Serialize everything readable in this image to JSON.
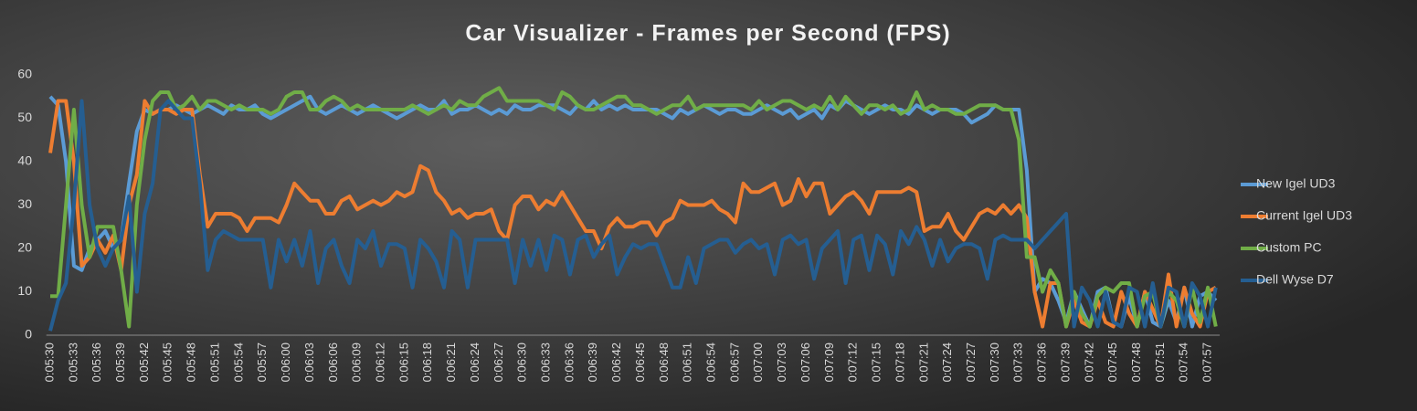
{
  "chart_data": {
    "type": "line",
    "title": "Car Visualizer - Frames per Second (FPS)",
    "categories": [
      "0:05:30",
      null,
      null,
      "0:05:33",
      null,
      null,
      "0:05:36",
      null,
      null,
      "0:05:39",
      null,
      null,
      "0:05:42",
      null,
      null,
      "0:05:45",
      null,
      null,
      "0:05:48",
      null,
      null,
      "0:05:51",
      null,
      null,
      "0:05:54",
      null,
      null,
      "0:05:57",
      null,
      null,
      "0:06:00",
      null,
      null,
      "0:06:03",
      null,
      null,
      "0:06:06",
      null,
      null,
      "0:06:09",
      null,
      null,
      "0:06:12",
      null,
      null,
      "0:06:15",
      null,
      null,
      "0:06:18",
      null,
      null,
      "0:06:21",
      null,
      null,
      "0:06:24",
      null,
      null,
      "0:06:27",
      null,
      null,
      "0:06:30",
      null,
      null,
      "0:06:33",
      null,
      null,
      "0:06:36",
      null,
      null,
      "0:06:39",
      null,
      null,
      "0:06:42",
      null,
      null,
      "0:06:45",
      null,
      null,
      "0:06:48",
      null,
      null,
      "0:06:51",
      null,
      null,
      "0:06:54",
      null,
      null,
      "0:06:57",
      null,
      null,
      "0:07:00",
      null,
      null,
      "0:07:03",
      null,
      null,
      "0:07:06",
      null,
      null,
      "0:07:09",
      null,
      null,
      "0:07:12",
      null,
      null,
      "0:07:15",
      null,
      null,
      "0:07:18",
      null,
      null,
      "0:07:21",
      null,
      null,
      "0:07:24",
      null,
      null,
      "0:07:27",
      null,
      null,
      "0:07:30",
      null,
      null,
      "0:07:33",
      null,
      null,
      "0:07:36",
      null,
      null,
      "0:07:39",
      null,
      null,
      "0:07:42",
      null,
      null,
      "0:07:45",
      null,
      null,
      "0:07:48",
      null,
      null,
      "0:07:51",
      null,
      null,
      "0:07:54",
      null,
      null,
      "0:07:57",
      null
    ],
    "series": [
      {
        "name": "New Igel UD3",
        "color": "#5b9bd5",
        "values": [
          55,
          53,
          40,
          16,
          15,
          20,
          22,
          24,
          20,
          22,
          35,
          47,
          52,
          51,
          52,
          52,
          53,
          52,
          51,
          52,
          53,
          52,
          51,
          53,
          52,
          52,
          53,
          51,
          50,
          51,
          52,
          53,
          54,
          55,
          52,
          51,
          52,
          53,
          52,
          51,
          52,
          53,
          52,
          51,
          50,
          51,
          52,
          53,
          52,
          52,
          54,
          51,
          52,
          52,
          53,
          52,
          51,
          52,
          51,
          53,
          52,
          52,
          53,
          53,
          53,
          52,
          51,
          53,
          52,
          54,
          52,
          53,
          52,
          53,
          52,
          52,
          52,
          52,
          51,
          50,
          52,
          51,
          52,
          53,
          52,
          51,
          52,
          52,
          51,
          51,
          52,
          53,
          52,
          51,
          52,
          50,
          51,
          52,
          50,
          53,
          52,
          54,
          53,
          52,
          51,
          52,
          53,
          52,
          52,
          51,
          53,
          52,
          51,
          52,
          52,
          52,
          51,
          49,
          50,
          51,
          53,
          52,
          52,
          52,
          38,
          10,
          13,
          12,
          8,
          3,
          10,
          6,
          2,
          10,
          11,
          3,
          2,
          9,
          2,
          10,
          3,
          2,
          8,
          3,
          11,
          2,
          9,
          10,
          8
        ]
      },
      {
        "name": "Current Igel UD3",
        "color": "#ed7d31",
        "values": [
          42,
          54,
          54,
          40,
          16,
          18,
          22,
          19,
          23,
          15,
          30,
          37,
          54,
          51,
          52,
          52,
          51,
          52,
          52,
          37,
          25,
          28,
          28,
          28,
          27,
          24,
          27,
          27,
          27,
          26,
          30,
          35,
          33,
          31,
          31,
          28,
          28,
          31,
          32,
          29,
          30,
          31,
          30,
          31,
          33,
          32,
          33,
          39,
          38,
          33,
          31,
          28,
          29,
          27,
          28,
          28,
          29,
          24,
          22,
          30,
          32,
          32,
          29,
          31,
          30,
          33,
          30,
          27,
          24,
          24,
          20,
          25,
          27,
          25,
          25,
          26,
          26,
          23,
          26,
          27,
          31,
          30,
          30,
          30,
          31,
          29,
          28,
          26,
          35,
          33,
          33,
          34,
          35,
          30,
          31,
          36,
          32,
          35,
          35,
          28,
          30,
          32,
          33,
          31,
          28,
          33,
          33,
          33,
          33,
          34,
          33,
          24,
          25,
          25,
          28,
          24,
          22,
          25,
          28,
          29,
          28,
          30,
          28,
          30,
          27,
          10,
          2,
          12,
          12,
          2,
          8,
          3,
          2,
          8,
          3,
          2,
          10,
          5,
          2,
          10,
          6,
          2,
          14,
          2,
          11,
          5,
          2,
          10,
          11
        ]
      },
      {
        "name": "Custom PC",
        "color": "#70ad47",
        "values": [
          9,
          9,
          30,
          52,
          30,
          18,
          25,
          25,
          25,
          15,
          2,
          30,
          45,
          54,
          56,
          56,
          52,
          53,
          55,
          52,
          54,
          54,
          53,
          52,
          53,
          52,
          52,
          52,
          51,
          52,
          55,
          56,
          56,
          52,
          52,
          54,
          55,
          54,
          52,
          53,
          52,
          52,
          52,
          52,
          52,
          52,
          53,
          52,
          51,
          52,
          53,
          52,
          54,
          53,
          53,
          55,
          56,
          57,
          54,
          54,
          54,
          54,
          54,
          53,
          52,
          56,
          55,
          53,
          52,
          52,
          53,
          54,
          55,
          55,
          53,
          53,
          52,
          51,
          52,
          53,
          53,
          55,
          52,
          53,
          53,
          53,
          53,
          53,
          53,
          52,
          54,
          52,
          53,
          54,
          54,
          53,
          52,
          53,
          52,
          55,
          52,
          55,
          53,
          51,
          53,
          53,
          52,
          53,
          51,
          52,
          56,
          52,
          53,
          52,
          52,
          51,
          51,
          52,
          53,
          53,
          53,
          52,
          52,
          45,
          18,
          18,
          10,
          15,
          12,
          2,
          10,
          5,
          2,
          9,
          11,
          10,
          12,
          12,
          2,
          9,
          10,
          2,
          10,
          8,
          2,
          11,
          3,
          11,
          2
        ]
      },
      {
        "name": "Dell Wyse D7",
        "color": "#255e91",
        "values": [
          1,
          8,
          12,
          30,
          54,
          30,
          20,
          16,
          20,
          22,
          32,
          10,
          28,
          35,
          52,
          54,
          52,
          50,
          50,
          35,
          15,
          22,
          24,
          23,
          22,
          22,
          22,
          22,
          11,
          22,
          17,
          22,
          16,
          24,
          12,
          20,
          22,
          16,
          12,
          22,
          20,
          24,
          16,
          21,
          21,
          20,
          11,
          22,
          20,
          17,
          11,
          24,
          22,
          11,
          22,
          22,
          22,
          22,
          22,
          12,
          22,
          16,
          22,
          15,
          23,
          22,
          14,
          22,
          23,
          18,
          21,
          23,
          14,
          18,
          21,
          20,
          21,
          21,
          16,
          11,
          11,
          18,
          12,
          20,
          21,
          22,
          22,
          19,
          21,
          22,
          20,
          21,
          14,
          22,
          23,
          21,
          22,
          13,
          20,
          22,
          24,
          12,
          22,
          23,
          15,
          23,
          21,
          14,
          24,
          21,
          25,
          22,
          16,
          22,
          17,
          20,
          21,
          21,
          20,
          13,
          22,
          23,
          22,
          22,
          22,
          20,
          22,
          24,
          26,
          28,
          2,
          11,
          8,
          2,
          10,
          3,
          2,
          11,
          10,
          2,
          12,
          2,
          11,
          10,
          2,
          12,
          9,
          2,
          11
        ]
      }
    ],
    "ylim": [
      0,
      60
    ],
    "yticks": [
      0,
      10,
      20,
      30,
      40,
      50,
      60
    ],
    "grid": false,
    "legend": "right"
  }
}
